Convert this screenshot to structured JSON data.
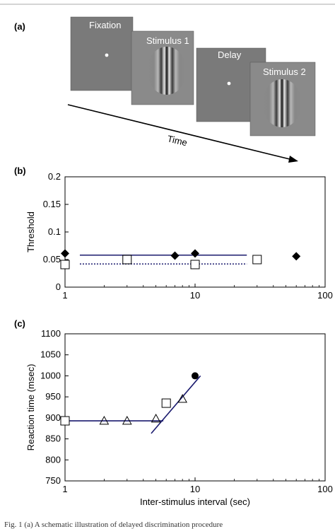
{
  "panel_a": {
    "label": "(a)",
    "screens": [
      "Fixation",
      "Stimulus 1",
      "Delay",
      "Stimulus 2"
    ],
    "time_label": "Time"
  },
  "caption_fragment": "Fig. 1 (a) A schematic illustration of delayed discrimination procedure",
  "chart_data": [
    {
      "panel": "(b)",
      "type": "scatter",
      "xscale": "log",
      "xlim": [
        1,
        100
      ],
      "ylim": [
        0,
        0.2
      ],
      "xticks": [
        "1",
        "10",
        "100"
      ],
      "yticks": [
        "0",
        "0.05",
        "0.1",
        "0.15",
        "0.2"
      ],
      "xlabel": "",
      "ylabel": "Threshold",
      "series": [
        {
          "marker": "diamond-filled",
          "x": [
            1,
            7,
            10,
            60
          ],
          "y": [
            0.061,
            0.057,
            0.061,
            0.056
          ]
        },
        {
          "marker": "square-open",
          "x": [
            1,
            3,
            10,
            30
          ],
          "y": [
            0.041,
            0.05,
            0.041,
            0.05
          ]
        }
      ],
      "lines": [
        {
          "style": "solid",
          "color": "#1a1a6e",
          "x": [
            1.3,
            25
          ],
          "y": [
            0.058,
            0.058
          ]
        },
        {
          "style": "dotted",
          "color": "#1a1a6e",
          "x": [
            1.3,
            25
          ],
          "y": [
            0.042,
            0.042
          ]
        }
      ]
    },
    {
      "panel": "(c)",
      "type": "scatter",
      "xscale": "log",
      "xlim": [
        1,
        100
      ],
      "ylim": [
        750,
        1100
      ],
      "xticks": [
        "1",
        "10",
        "100"
      ],
      "yticks": [
        "750",
        "800",
        "850",
        "900",
        "950",
        "1000",
        "1050",
        "1100"
      ],
      "xlabel": "Inter-stimulus interval (sec)",
      "ylabel": "Reaction time (msec)",
      "series": [
        {
          "marker": "triangle-open",
          "x": [
            1,
            2,
            3,
            5,
            8
          ],
          "y": [
            893,
            893,
            893,
            898,
            945
          ]
        },
        {
          "marker": "square-open",
          "x": [
            1,
            6
          ],
          "y": [
            893,
            935
          ]
        },
        {
          "marker": "circle-filled",
          "x": [
            10
          ],
          "y": [
            1000
          ]
        }
      ],
      "lines": [
        {
          "style": "solid",
          "color": "#1a1a6e",
          "x": [
            1,
            5.7
          ],
          "y": [
            893,
            893
          ]
        },
        {
          "style": "solid",
          "color": "#1a1a6e",
          "x": [
            4.6,
            11
          ],
          "y": [
            863,
            1000
          ]
        }
      ]
    }
  ]
}
